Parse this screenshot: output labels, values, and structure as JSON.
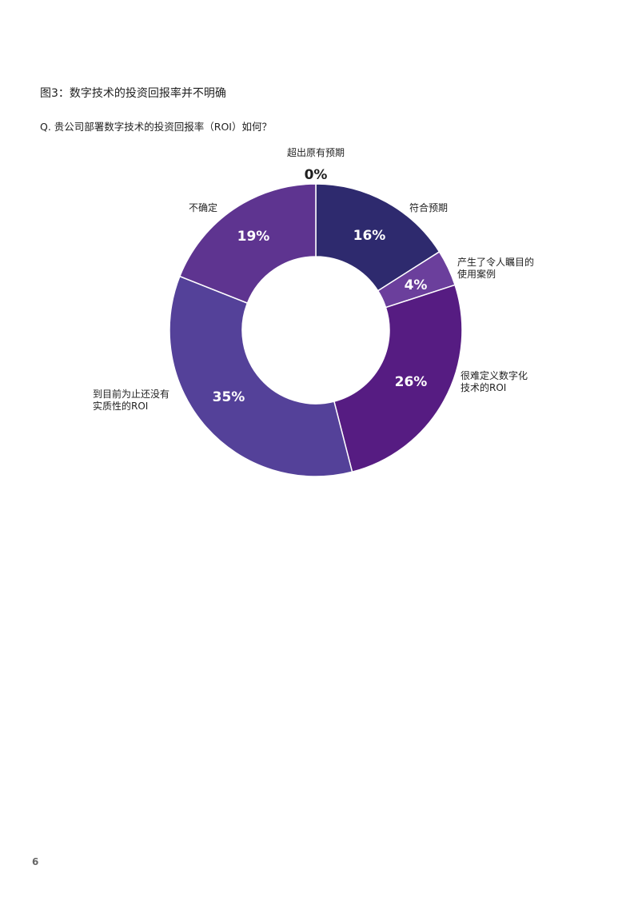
{
  "figure": {
    "title": "图3：数字技术的投资回报率并不明确",
    "question": "Q. 贵公司部署数字技术的投资回报率（ROI）如何？"
  },
  "chart_data": {
    "type": "pie",
    "donut": true,
    "unit": "%",
    "slices": [
      {
        "label_lines": [
          "超出原有预期"
        ],
        "value": 0,
        "value_label": "0%",
        "color": "#2e2a6e"
      },
      {
        "label_lines": [
          "符合预期"
        ],
        "value": 16,
        "value_label": "16%",
        "color": "#2e2a6e"
      },
      {
        "label_lines": [
          "产生了令人瞩目的",
          "使用案例"
        ],
        "value": 4,
        "value_label": "4%",
        "color": "#6b3f9c"
      },
      {
        "label_lines": [
          "很难定义数字化",
          "技术的ROI"
        ],
        "value": 26,
        "value_label": "26%",
        "color": "#561c82"
      },
      {
        "label_lines": [
          "到目前为止还没有",
          "实质性的ROI"
        ],
        "value": 35,
        "value_label": "35%",
        "color": "#544199"
      },
      {
        "label_lines": [
          "不确定"
        ],
        "value": 19,
        "value_label": "19%",
        "color": "#5e3490"
      }
    ]
  },
  "footer": {
    "page_number": "6"
  }
}
